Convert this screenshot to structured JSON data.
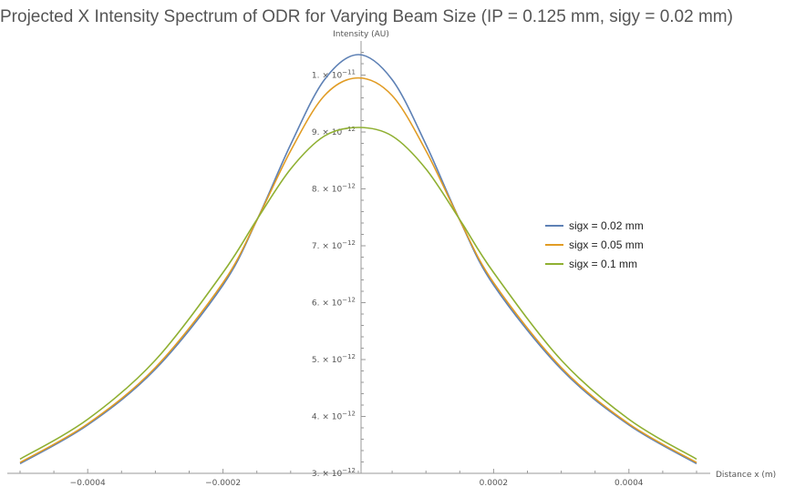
{
  "chart_data": {
    "type": "line",
    "title": "Projected X Intensity Spectrum of ODR for Varying Beam Size (IP = 0.125 mm, sigy = 0.02 mm)",
    "xlabel": "Distance x (m)",
    "ylabel": "Intensity (AU)",
    "xlim": [
      -0.0005,
      0.0005
    ],
    "ylim": [
      3e-12,
      1.06e-11
    ],
    "x_ticks": [
      {
        "value": -0.0004,
        "label": "−0.0004"
      },
      {
        "value": -0.0002,
        "label": "−0.0002"
      },
      {
        "value": 0.0002,
        "label": "0.0002"
      },
      {
        "value": 0.0004,
        "label": "0.0004"
      }
    ],
    "y_ticks": [
      {
        "value": 3e-12,
        "mant": "3.",
        "exp": "−12"
      },
      {
        "value": 4e-12,
        "mant": "4.",
        "exp": "−12"
      },
      {
        "value": 5e-12,
        "mant": "5.",
        "exp": "−12"
      },
      {
        "value": 6e-12,
        "mant": "6.",
        "exp": "−12"
      },
      {
        "value": 7e-12,
        "mant": "7.",
        "exp": "−12"
      },
      {
        "value": 8e-12,
        "mant": "8.",
        "exp": "−12"
      },
      {
        "value": 9e-12,
        "mant": "9.",
        "exp": "−12"
      },
      {
        "value": 1e-11,
        "mant": "1.",
        "exp": "−11"
      }
    ],
    "x": [
      -0.0005,
      -0.0004,
      -0.0003,
      -0.0002,
      -0.00015,
      -0.0001,
      -5e-05,
      0,
      5e-05,
      0.0001,
      0.00015,
      0.0002,
      0.0003,
      0.0004,
      0.0005
    ],
    "series": [
      {
        "name": "sigx = 0.02 mm",
        "color": "#5E81B5",
        "values": [
          3.17e-12,
          3.85e-12,
          4.83e-12,
          6.31e-12,
          7.45e-12,
          8.78e-12,
          9.92e-12,
          1.036e-11,
          9.92e-12,
          8.78e-12,
          7.45e-12,
          6.31e-12,
          4.83e-12,
          3.85e-12,
          3.17e-12
        ]
      },
      {
        "name": "sigx = 0.05 mm",
        "color": "#E19C24",
        "values": [
          3.19e-12,
          3.87e-12,
          4.86e-12,
          6.35e-12,
          7.45e-12,
          8.67e-12,
          9.64e-12,
          9.95e-12,
          9.64e-12,
          8.67e-12,
          7.45e-12,
          6.35e-12,
          4.86e-12,
          3.87e-12,
          3.19e-12
        ]
      },
      {
        "name": "sigx = 0.1 mm",
        "color": "#8FB032",
        "values": [
          3.25e-12,
          3.95e-12,
          4.99e-12,
          6.53e-12,
          7.46e-12,
          8.35e-12,
          8.93e-12,
          9.08e-12,
          8.93e-12,
          8.35e-12,
          7.46e-12,
          6.53e-12,
          4.99e-12,
          3.95e-12,
          3.25e-12
        ]
      }
    ],
    "legend_position": "right",
    "grid": false
  }
}
